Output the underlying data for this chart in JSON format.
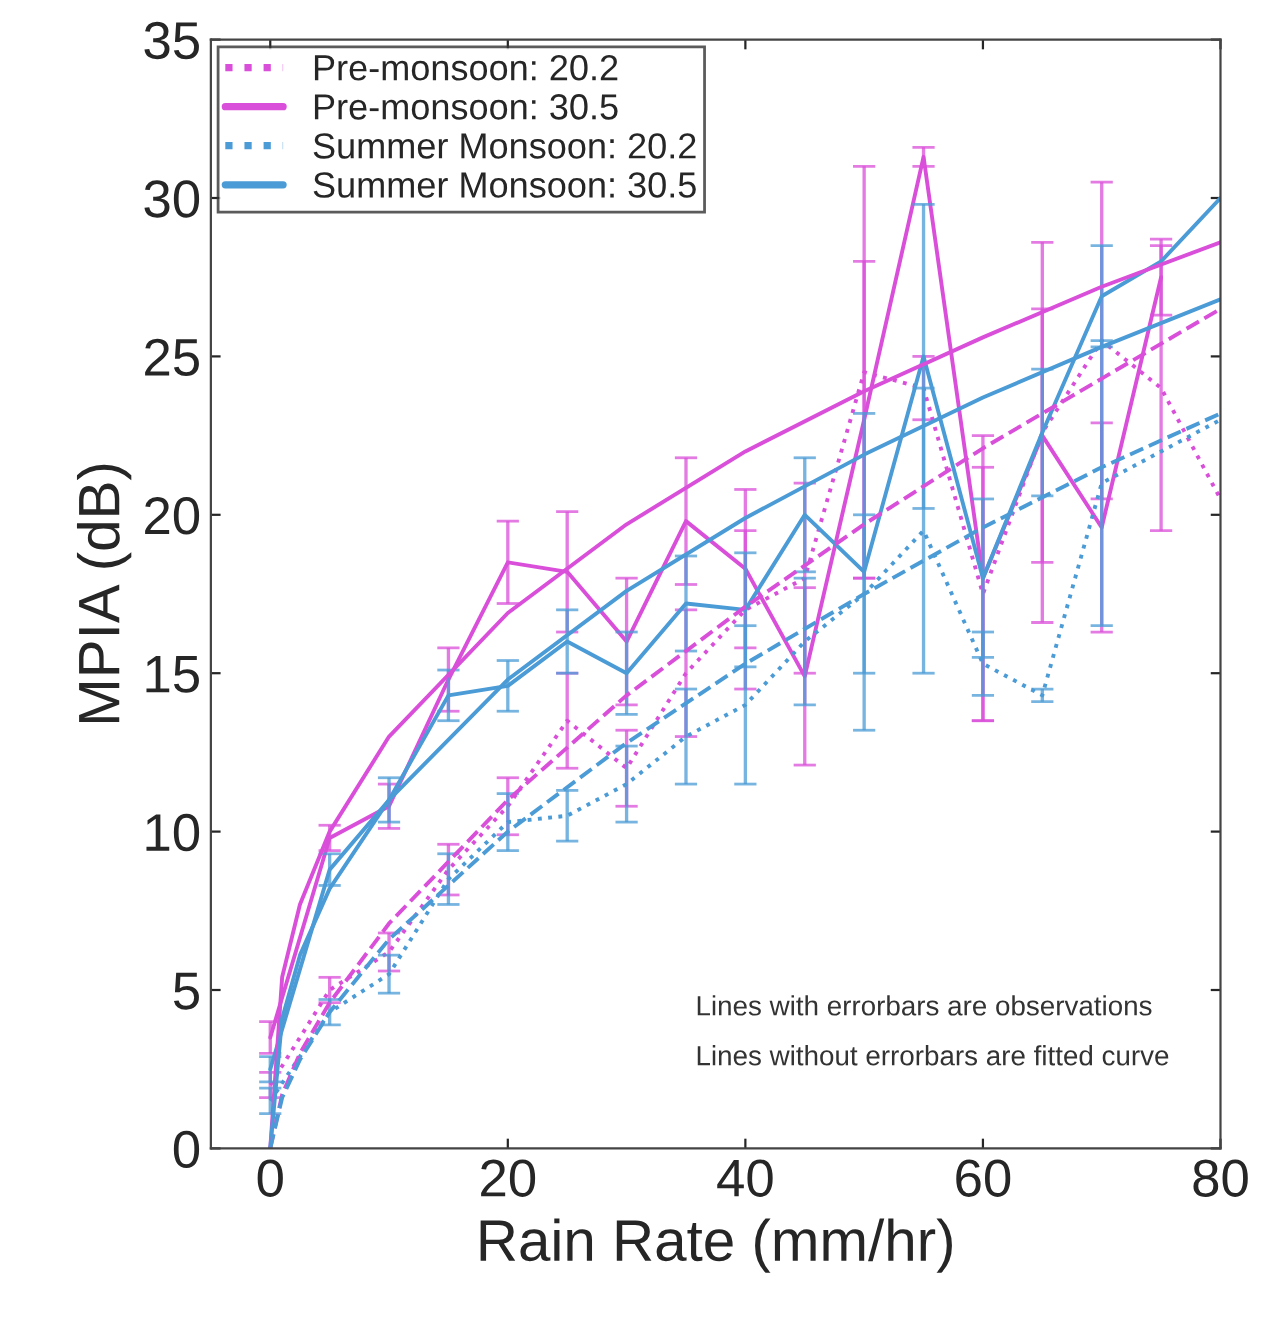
{
  "chart_data": {
    "type": "line",
    "xlabel": "Rain Rate (mm/hr)",
    "ylabel": "MPIA (dB)",
    "xlim": [
      -5,
      80
    ],
    "ylim": [
      0,
      35
    ],
    "xticks": [
      0,
      20,
      40,
      60,
      80
    ],
    "yticks": [
      0,
      5,
      10,
      15,
      20,
      25,
      30,
      35
    ],
    "grid": false,
    "legend": "top left",
    "marker": "none",
    "series": [
      {
        "name": "Pre-monsoon: 20.2",
        "color": "#d94fd9",
        "line_style": "dotted",
        "x": [
          0,
          5,
          10,
          15,
          20,
          25,
          30,
          35,
          40,
          45,
          50,
          55,
          60,
          65,
          70,
          75,
          80
        ],
        "values": [
          2.0,
          5.0,
          6.2,
          8.8,
          10.8,
          13.5,
          12.0,
          15.0,
          17.0,
          18.0,
          24.5,
          24.0,
          17.5,
          22.6,
          25.5,
          24.0,
          20.5
        ],
        "errors": [
          0.4,
          0.4,
          0.6,
          0.8,
          0.9,
          1.5,
          1.2,
          2.0,
          2.5,
          3.0,
          6.5,
          1.0,
          4.0,
          6.0,
          5.0,
          4.5,
          null
        ]
      },
      {
        "name": "Pre-monsoon: 30.5",
        "color": "#d94fd9",
        "line_style": "solid",
        "x": [
          0,
          5,
          10,
          15,
          20,
          25,
          30,
          35,
          40,
          45,
          50,
          55,
          60,
          65,
          70,
          75
        ],
        "values": [
          3.5,
          9.8,
          10.8,
          14.8,
          18.5,
          18.2,
          16.0,
          19.8,
          18.3,
          14.9,
          23.0,
          31.3,
          18.0,
          22.5,
          19.6,
          27.5
        ],
        "errors": [
          0.5,
          0.4,
          0.7,
          1.0,
          1.3,
          1.9,
          2.0,
          2.0,
          2.5,
          2.8,
          5.0,
          0.3,
          4.5,
          4.0,
          3.3,
          1.2
        ]
      },
      {
        "name": "Summer Monsoon: 20.2",
        "color": "#4b9bd6",
        "line_style": "dotted",
        "x": [
          0,
          5,
          10,
          15,
          20,
          25,
          30,
          35,
          40,
          45,
          50,
          55,
          60,
          65,
          70,
          75,
          80
        ],
        "values": [
          1.5,
          4.3,
          5.5,
          8.5,
          10.3,
          10.5,
          11.5,
          13.0,
          14.0,
          16.0,
          17.5,
          19.5,
          15.3,
          14.3,
          21.0,
          22.0,
          23.0
        ],
        "errors": [
          0.4,
          0.4,
          0.6,
          0.8,
          0.9,
          0.8,
          1.2,
          1.5,
          2.5,
          2.0,
          2.5,
          4.5,
          1.0,
          0.2,
          4.5,
          null,
          null
        ]
      },
      {
        "name": "Summer Monsoon: 30.5",
        "color": "#4b9bd6",
        "line_style": "solid",
        "x": [
          0,
          5,
          10,
          15,
          20,
          25,
          30,
          35,
          40,
          45,
          50,
          55,
          60,
          65,
          70,
          75,
          80
        ],
        "values": [
          2.5,
          8.8,
          11.0,
          14.3,
          14.6,
          16.0,
          15.0,
          17.2,
          17.0,
          20.0,
          18.2,
          25.0,
          18.0,
          22.6,
          26.9,
          28.0,
          30.0
        ],
        "errors": [
          0.4,
          0.5,
          0.7,
          0.8,
          0.8,
          1.0,
          1.3,
          1.5,
          1.8,
          1.8,
          5.0,
          4.8,
          2.5,
          2.0,
          1.6,
          null,
          null
        ]
      },
      {
        "color": "#d94fd9",
        "line_style": "solid",
        "x": [
          0,
          1,
          2.5,
          5,
          10,
          20,
          30,
          40,
          50,
          60,
          70,
          80
        ],
        "values": [
          0,
          5.4,
          7.7,
          10.0,
          13.0,
          16.9,
          19.7,
          22.0,
          23.9,
          25.6,
          27.2,
          28.6
        ]
      },
      {
        "color": "#4b9bd6",
        "line_style": "solid",
        "x": [
          0,
          1,
          2.5,
          5,
          10,
          20,
          30,
          40,
          50,
          60,
          70,
          80
        ],
        "values": [
          0,
          4.1,
          6.1,
          8.2,
          11.0,
          14.8,
          17.6,
          19.9,
          21.9,
          23.7,
          25.3,
          26.8
        ]
      },
      {
        "color": "#d94fd9",
        "line_style": "dashed",
        "x": [
          0,
          1,
          2.5,
          5,
          10,
          20,
          30,
          40,
          50,
          60,
          70,
          80
        ],
        "values": [
          0,
          1.7,
          3.0,
          4.6,
          7.1,
          11.0,
          14.3,
          17.1,
          19.7,
          22.1,
          24.3,
          26.5
        ]
      },
      {
        "color": "#4b9bd6",
        "line_style": "dashed",
        "x": [
          0,
          1,
          2.5,
          5,
          10,
          20,
          30,
          40,
          50,
          60,
          70,
          80
        ],
        "values": [
          0,
          1.6,
          2.8,
          4.3,
          6.6,
          10.0,
          12.8,
          15.3,
          17.5,
          19.6,
          21.5,
          23.2
        ]
      }
    ],
    "annotations": [
      "Lines with errorbars are observations",
      "Lines without errorbars are fitted curve"
    ]
  }
}
